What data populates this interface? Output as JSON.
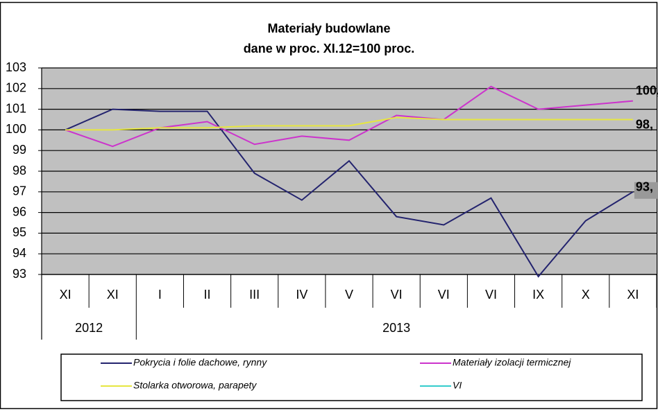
{
  "chart_data": {
    "type": "line",
    "title": "Materiały budowlane",
    "subtitle": "dane w proc. XI.12=100 proc.",
    "categories": [
      "XI",
      "XI",
      "I",
      "II",
      "III",
      "IV",
      "V",
      "VI",
      "VI",
      "VI",
      "IX",
      "X",
      "XI"
    ],
    "years": [
      "2012",
      "2013"
    ],
    "series": [
      {
        "name": "Pokrycia i folie dachowe, rynny",
        "color": "#23236e",
        "values": [
          100,
          101,
          100.9,
          100.9,
          97.9,
          96.6,
          98.5,
          95.8,
          95.4,
          96.7,
          92.9,
          95.6,
          97.0
        ]
      },
      {
        "name": "Materiały izolacji termicznej",
        "color": "#cc33cc",
        "values": [
          100,
          99.2,
          100.1,
          100.4,
          99.3,
          99.7,
          99.5,
          100.7,
          100.5,
          102.1,
          101.0,
          101.2,
          101.4
        ]
      },
      {
        "name": "Stolarka otworowa, parapety",
        "color": "#e6e640",
        "values": [
          100,
          100,
          100.1,
          100.1,
          100.2,
          100.2,
          100.2,
          100.6,
          100.5,
          100.5,
          100.5,
          100.5,
          100.5
        ]
      },
      {
        "name": "VI",
        "color": "#33cccc",
        "values": [
          null,
          null,
          null,
          null,
          null,
          null,
          null,
          null,
          null,
          null,
          null,
          null,
          null
        ]
      }
    ],
    "annotations": [
      "100,",
      "98,",
      "93,"
    ],
    "ylim": [
      93,
      103
    ],
    "yticks": [
      93,
      94,
      95,
      96,
      97,
      98,
      99,
      100,
      101,
      102,
      103
    ],
    "grid": true
  }
}
